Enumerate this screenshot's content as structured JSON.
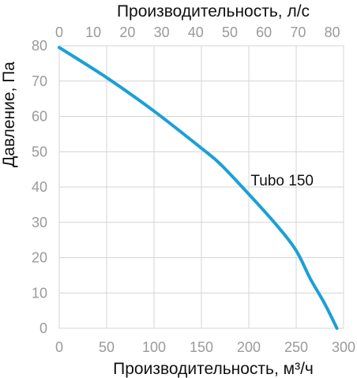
{
  "chart_data": {
    "type": "line",
    "xlabel_bottom": "Производительность, м³/ч",
    "xlabel_top": "Производительность, л/с",
    "ylabel": "Давление, Па",
    "xlim_bottom": [
      0,
      300
    ],
    "xlim_top": [
      0,
      80
    ],
    "ylim": [
      0,
      80
    ],
    "x_ticks_bottom": [
      0,
      50,
      100,
      150,
      200,
      250,
      300
    ],
    "x_ticks_top": [
      0,
      10,
      20,
      30,
      40,
      50,
      60,
      70,
      80
    ],
    "y_ticks": [
      0,
      10,
      20,
      30,
      40,
      50,
      60,
      70,
      80
    ],
    "grid": true,
    "series": [
      {
        "name": "Tubo 150",
        "color": "#1aa0d8",
        "x": [
          0,
          50,
          100,
          150,
          170,
          200,
          230,
          250,
          265,
          280,
          293
        ],
        "y": [
          79.5,
          71,
          61.5,
          51,
          46.5,
          38,
          29,
          22,
          14,
          7,
          0
        ]
      }
    ],
    "annotations": [
      {
        "text": "Tubo 150",
        "x": 202,
        "y": 40
      }
    ]
  }
}
